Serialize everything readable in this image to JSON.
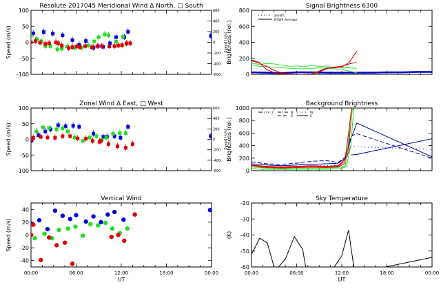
{
  "chart_data": [
    {
      "id": "meridional",
      "type": "scatter",
      "title": "Resolute   2017045     Meridional Wind   Δ North, □ South",
      "xlabel": "",
      "ylabel": "Speed (m/s)",
      "ylabel_right": "Speed (m/s)",
      "xlim": [
        0,
        24
      ],
      "ylim": [
        -100,
        100
      ],
      "yticks": [
        -100,
        -50,
        0,
        50,
        100
      ],
      "yticks_right": [
        -600,
        -400,
        -200,
        0,
        200,
        400,
        600
      ],
      "xticks": [],
      "series": [
        {
          "name": "Blue",
          "color": "#0000dd",
          "x": [
            0.3,
            1.7,
            2.9,
            4.2,
            5.5,
            6.4,
            7.3,
            8.3,
            8.9,
            9.6,
            10.5,
            11.3,
            12.4,
            12.9,
            23.9
          ],
          "y": [
            28,
            32,
            27,
            22,
            7,
            -8,
            4,
            -17,
            -12,
            -14,
            -3,
            16,
            16,
            33,
            20
          ]
        },
        {
          "name": "Green",
          "color": "#22dd22",
          "x": [
            0,
            0.8,
            1.4,
            1.9,
            2.6,
            3.5,
            4.1,
            4.8,
            5.8,
            6.7,
            7.6,
            8.4,
            9.0,
            9.8,
            10.3,
            11.3,
            12.2,
            12.7
          ],
          "y": [
            20,
            10,
            3,
            -12,
            -12,
            -22,
            -20,
            -13,
            -17,
            -17,
            -10,
            3,
            16,
            25,
            22,
            2,
            17,
            -5
          ]
        },
        {
          "name": "Red",
          "color": "#dd0000",
          "x": [
            0,
            0.6,
            1.2,
            1.9,
            2.4,
            3.3,
            3.6,
            4.1,
            5.0,
            5.5,
            6.1,
            6.5,
            7.2,
            8.1,
            8.8,
            9.4,
            10.4,
            11.1,
            11.6,
            12.1,
            12.7,
            13.2
          ],
          "y": [
            0,
            4,
            -1,
            -5,
            -3,
            0,
            -3,
            -10,
            -18,
            -15,
            -13,
            -15,
            -12,
            -15,
            -12,
            -12,
            -13,
            -12,
            -10,
            -9,
            -3,
            -3
          ]
        }
      ]
    },
    {
      "id": "signal",
      "type": "line",
      "title": "Signal Brightness      6300",
      "xlabel": "",
      "ylabel": "Brightness (rel.)",
      "xlim": [
        0,
        24
      ],
      "ylim": [
        0,
        800
      ],
      "yticks": [
        0,
        200,
        400,
        600,
        800
      ],
      "legend": [
        "Zenith",
        "NSWE Average"
      ],
      "legend_position": "top-left",
      "series": [
        {
          "name": "Blue zenith",
          "color": "#0000cc",
          "x": [
            0,
            2,
            4,
            6,
            8,
            10,
            12,
            14,
            16,
            18,
            20,
            22,
            24
          ],
          "y": [
            25,
            20,
            15,
            25,
            25,
            20,
            20,
            20,
            20,
            25,
            25,
            30,
            30
          ]
        },
        {
          "name": "Green 1",
          "color": "#33dd33",
          "x": [
            0,
            1,
            2,
            3,
            4,
            5,
            6,
            7,
            8,
            9,
            10,
            11,
            12,
            13,
            14
          ],
          "y": [
            140,
            125,
            135,
            130,
            115,
            100,
            105,
            95,
            110,
            100,
            95,
            90,
            85,
            80,
            75
          ]
        },
        {
          "name": "Green 2",
          "color": "#33dd33",
          "x": [
            0,
            1,
            2,
            3,
            4,
            5,
            6,
            7,
            8,
            9,
            10,
            11,
            12,
            13,
            14
          ],
          "y": [
            120,
            100,
            95,
            90,
            85,
            75,
            70,
            70,
            75,
            80,
            75,
            70,
            60,
            40,
            20
          ]
        },
        {
          "name": "Red 1",
          "color": "#cc0000",
          "x": [
            0,
            1,
            2,
            3,
            4,
            5,
            6,
            7,
            8,
            9,
            10,
            11,
            12,
            13,
            14
          ],
          "y": [
            180,
            150,
            60,
            20,
            10,
            5,
            0,
            0,
            5,
            40,
            80,
            80,
            90,
            150,
            290
          ]
        },
        {
          "name": "Red 2",
          "color": "#cc0000",
          "x": [
            0,
            1,
            2,
            3,
            4,
            5,
            6,
            7,
            8,
            9,
            10,
            11,
            12,
            13,
            14
          ],
          "y": [
            170,
            140,
            100,
            50,
            20,
            5,
            0,
            0,
            0,
            30,
            70,
            90,
            100,
            130,
            150
          ]
        }
      ]
    },
    {
      "id": "zonal",
      "type": "scatter",
      "title": "Zonal Wind      Δ East, □ West",
      "xlabel": "",
      "ylabel": "Speed (m/s)",
      "ylabel_right": "Speed (m/s)",
      "xlim": [
        0,
        24
      ],
      "ylim": [
        -100,
        100
      ],
      "yticks": [
        -100,
        -50,
        0,
        50,
        100
      ],
      "yticks_right": [
        -600,
        -400,
        -200,
        0,
        200,
        400,
        600
      ],
      "xticks": [],
      "series": [
        {
          "name": "Blue",
          "color": "#0000dd",
          "x": [
            0.1,
            1.0,
            1.9,
            2.6,
            3.6,
            4.6,
            5.6,
            6.4,
            8.3,
            9.6,
            10.1,
            11.1,
            11.9,
            12.9,
            23.9
          ],
          "y": [
            -3,
            13,
            25,
            32,
            45,
            42,
            43,
            40,
            18,
            8,
            8,
            10,
            5,
            40,
            10
          ]
        },
        {
          "name": "Green",
          "color": "#22dd22",
          "x": [
            0.7,
            1.6,
            2.4,
            3.4,
            4.2,
            4.9,
            5.8,
            6.9,
            7.8,
            8.7,
            9.4,
            10.0,
            10.9,
            11.8,
            12.6
          ],
          "y": [
            25,
            38,
            36,
            32,
            35,
            25,
            6,
            -5,
            6,
            10,
            -2,
            5,
            18,
            20,
            20
          ]
        },
        {
          "name": "Red",
          "color": "#dd0000",
          "x": [
            0,
            0.3,
            1.3,
            2.2,
            3.2,
            4.2,
            5.2,
            6.2,
            7.3,
            8.2,
            9.1,
            9.3,
            10.3,
            11.5,
            12.6,
            13.5
          ],
          "y": [
            0,
            5,
            8,
            6,
            5,
            10,
            10,
            3,
            2,
            -5,
            -8,
            -5,
            -15,
            -22,
            -27,
            -15
          ]
        }
      ]
    },
    {
      "id": "background",
      "type": "line",
      "title": "Background Brightness",
      "xlabel": "",
      "ylabel": "Brightness (rel.)",
      "xlim": [
        0,
        24
      ],
      "ylim": [
        0,
        1000
      ],
      "yticks": [
        0,
        200,
        400,
        600,
        800,
        1000
      ],
      "legend": [
        {
          "label": "Z",
          "style": "dash-dot-dot"
        },
        {
          "label": "N",
          "style": "dash-dot"
        },
        {
          "label": "S",
          "style": "dashed"
        },
        {
          "label": "W",
          "style": "dotted"
        },
        {
          "label": "E",
          "style": "solid"
        }
      ],
      "legend_position": "top-left",
      "series": [
        {
          "name": "Blue E",
          "color": "#000099",
          "dash": "",
          "x": [
            0,
            2,
            4,
            6,
            8,
            10,
            11.5,
            12.5,
            13.2,
            14,
            24
          ],
          "y": [
            110,
            90,
            80,
            90,
            100,
            110,
            120,
            200,
            500,
            760,
            220
          ]
        },
        {
          "name": "Blue E2",
          "color": "#000099",
          "dash": "",
          "x": [
            13.2,
            14,
            24
          ],
          "y": [
            250,
            260,
            510
          ]
        },
        {
          "name": "Blue S",
          "color": "#000099",
          "dash": "6,3",
          "x": [
            0,
            2,
            4,
            6,
            8,
            10,
            11.5,
            12.5,
            13.2,
            14,
            24
          ],
          "y": [
            140,
            110,
            100,
            120,
            150,
            160,
            130,
            220,
            550,
            590,
            200
          ]
        },
        {
          "name": "Blue W",
          "color": "#000099",
          "dash": "1,4",
          "x": [
            0,
            2,
            4,
            6,
            8,
            10,
            11.5,
            12.5,
            13.2,
            14,
            24
          ],
          "y": [
            80,
            60,
            60,
            70,
            80,
            80,
            90,
            150,
            380,
            380,
            340
          ]
        },
        {
          "name": "Red 1",
          "color": "#dd0000",
          "dash": "",
          "x": [
            0,
            2,
            4,
            6,
            8,
            10,
            11.5,
            12.4,
            12.9,
            13.3
          ],
          "y": [
            80,
            60,
            50,
            60,
            70,
            60,
            70,
            150,
            600,
            1000
          ]
        },
        {
          "name": "Red 2",
          "color": "#dd0000",
          "dash": "",
          "x": [
            0,
            2,
            4,
            6,
            8,
            10,
            11.5,
            12.5,
            13.0,
            13.4
          ],
          "y": [
            60,
            50,
            40,
            50,
            55,
            50,
            60,
            120,
            500,
            1000
          ]
        },
        {
          "name": "Red 3",
          "color": "#dd0000",
          "dash": "",
          "x": [
            0,
            2,
            4,
            6,
            8,
            10,
            11.5,
            12.6,
            13.2
          ],
          "y": [
            90,
            70,
            60,
            70,
            80,
            70,
            80,
            200,
            400
          ]
        },
        {
          "name": "Green 1",
          "color": "#33dd33",
          "dash": "",
          "x": [
            0,
            1,
            2,
            4,
            6,
            8,
            10,
            11.5,
            12.6,
            13.2,
            13.6
          ],
          "y": [
            40,
            20,
            20,
            20,
            20,
            20,
            20,
            30,
            60,
            400,
            1000
          ]
        },
        {
          "name": "Green 2",
          "color": "#33dd33",
          "dash": "",
          "x": [
            0,
            2,
            4,
            6,
            8,
            10,
            11.5,
            12.5,
            13.0,
            13.4
          ],
          "y": [
            60,
            40,
            30,
            40,
            40,
            40,
            50,
            80,
            600,
            1000
          ]
        }
      ]
    },
    {
      "id": "vertical",
      "type": "scatter",
      "title": "Vertical Wind",
      "xlabel": "UT",
      "ylabel": "Speed (m/s)",
      "xlim": [
        0,
        24
      ],
      "ylim": [
        -50,
        50
      ],
      "yticks": [
        -40,
        -20,
        0,
        20,
        40
      ],
      "xticks": [
        "00:00",
        "06:00",
        "12:00",
        "18:00",
        "00:00"
      ],
      "series": [
        {
          "name": "Blue",
          "color": "#0000dd",
          "x": [
            0,
            1.1,
            2.2,
            3.2,
            4.2,
            5.2,
            6.0,
            7.3,
            8.3,
            9.3,
            10.2,
            11.1,
            12.3,
            23.8
          ],
          "y": [
            18,
            23,
            9,
            38,
            30,
            25,
            31,
            21,
            29,
            20,
            32,
            36,
            24,
            39
          ]
        },
        {
          "name": "Green",
          "color": "#22dd22",
          "x": [
            0.5,
            1.8,
            2.8,
            3.7,
            4.9,
            5.9,
            6.9,
            7.9,
            8.9,
            9.9,
            10.8,
            11.8,
            12.8
          ],
          "y": [
            -5,
            2,
            -5,
            8,
            10,
            13,
            -1,
            17,
            15,
            19,
            10,
            3,
            10
          ]
        },
        {
          "name": "Red",
          "color": "#dd0000",
          "x": [
            0,
            0.3,
            1.3,
            2.4,
            3.4,
            4.5,
            5.5,
            10.7,
            11.6,
            12.4,
            13.8
          ],
          "y": [
            0,
            16,
            -39,
            -4,
            -16,
            -12,
            -45,
            -3,
            0,
            -9,
            32
          ]
        }
      ]
    },
    {
      "id": "skytemp",
      "type": "line",
      "title": "Sky Temperature",
      "xlabel": "UT",
      "ylabel": "(K)",
      "xlim": [
        0,
        24
      ],
      "ylim": [
        -60,
        -20
      ],
      "yticks": [
        -60,
        -50,
        -40,
        -30,
        -20
      ],
      "xticks": [
        "00:00",
        "06:00",
        "12:00",
        "18:00",
        "00:00"
      ],
      "series": [
        {
          "name": "Segment 1",
          "color": "#000000",
          "x": [
            0,
            1.1,
            2.1,
            3.0
          ],
          "y": [
            -52,
            -42,
            -45,
            -60
          ]
        },
        {
          "name": "Segment 2",
          "color": "#000000",
          "x": [
            3.6,
            4.5,
            5.7,
            6.8,
            7.2
          ],
          "y": [
            -60,
            -55,
            -41,
            -49,
            -60
          ]
        },
        {
          "name": "Segment 3",
          "color": "#000000",
          "x": [
            11.0,
            12.0,
            12.9,
            13.6
          ],
          "y": [
            -60,
            -53,
            -37,
            -60
          ]
        },
        {
          "name": "Segment 4",
          "color": "#000000",
          "x": [
            17.8,
            24
          ],
          "y": [
            -60,
            -54
          ]
        }
      ]
    }
  ]
}
